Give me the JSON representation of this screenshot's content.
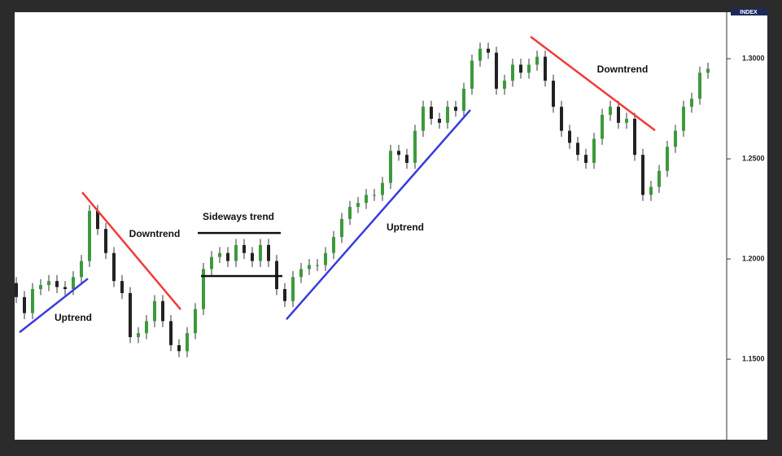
{
  "chart_data": {
    "type": "candlestick",
    "axis_badge": "INDEX",
    "up_color": "#3c9a3c",
    "down_color": "#222222",
    "wick_color": "#333333",
    "open": [
      1.188,
      1.181,
      1.173,
      1.185,
      1.187,
      1.189,
      1.186,
      1.185,
      1.191,
      1.199,
      1.224,
      1.215,
      1.203,
      1.189,
      1.183,
      1.161,
      1.163,
      1.169,
      1.179,
      1.169,
      1.157,
      1.154,
      1.163,
      1.175,
      1.195,
      1.201,
      1.203,
      1.199,
      1.207,
      1.203,
      1.199,
      1.207,
      1.199,
      1.185,
      1.179,
      1.191,
      1.195,
      1.197,
      1.197,
      1.203,
      1.211,
      1.22,
      1.226,
      1.228,
      1.232,
      1.232,
      1.238,
      1.254,
      1.252,
      1.248,
      1.264,
      1.276,
      1.27,
      1.268,
      1.276,
      1.274,
      1.285,
      1.299,
      1.305,
      1.303,
      1.285,
      1.289,
      1.297,
      1.293,
      1.297,
      1.301,
      1.289,
      1.276,
      1.264,
      1.258,
      1.252,
      1.248,
      1.26,
      1.272,
      1.276,
      1.268,
      1.27,
      1.252,
      1.232,
      1.236,
      1.244,
      1.256,
      1.264,
      1.276,
      1.28,
      1.293
    ],
    "high": [
      1.191,
      1.184,
      1.188,
      1.19,
      1.192,
      1.192,
      1.189,
      1.194,
      1.202,
      1.227,
      1.227,
      1.218,
      1.206,
      1.192,
      1.186,
      1.166,
      1.172,
      1.182,
      1.182,
      1.172,
      1.16,
      1.166,
      1.178,
      1.198,
      1.204,
      1.206,
      1.206,
      1.21,
      1.21,
      1.206,
      1.21,
      1.21,
      1.202,
      1.188,
      1.194,
      1.198,
      1.2,
      1.2,
      1.206,
      1.214,
      1.223,
      1.229,
      1.231,
      1.235,
      1.235,
      1.241,
      1.257,
      1.257,
      1.255,
      1.267,
      1.279,
      1.279,
      1.273,
      1.279,
      1.279,
      1.288,
      1.302,
      1.308,
      1.308,
      1.306,
      1.292,
      1.3,
      1.3,
      1.3,
      1.304,
      1.304,
      1.292,
      1.279,
      1.267,
      1.261,
      1.255,
      1.263,
      1.275,
      1.279,
      1.279,
      1.273,
      1.273,
      1.255,
      1.239,
      1.247,
      1.259,
      1.267,
      1.279,
      1.283,
      1.296,
      1.298
    ],
    "low": [
      1.178,
      1.17,
      1.17,
      1.182,
      1.184,
      1.183,
      1.182,
      1.182,
      1.188,
      1.196,
      1.212,
      1.2,
      1.186,
      1.18,
      1.158,
      1.158,
      1.16,
      1.166,
      1.166,
      1.154,
      1.151,
      1.151,
      1.16,
      1.172,
      1.192,
      1.198,
      1.196,
      1.196,
      1.2,
      1.196,
      1.196,
      1.196,
      1.182,
      1.176,
      1.176,
      1.188,
      1.192,
      1.194,
      1.194,
      1.2,
      1.208,
      1.217,
      1.223,
      1.225,
      1.229,
      1.229,
      1.235,
      1.249,
      1.245,
      1.245,
      1.261,
      1.267,
      1.265,
      1.265,
      1.271,
      1.271,
      1.282,
      1.296,
      1.3,
      1.282,
      1.282,
      1.286,
      1.29,
      1.29,
      1.294,
      1.286,
      1.273,
      1.261,
      1.255,
      1.249,
      1.245,
      1.245,
      1.257,
      1.269,
      1.265,
      1.265,
      1.249,
      1.229,
      1.229,
      1.233,
      1.241,
      1.253,
      1.261,
      1.273,
      1.277,
      1.29
    ],
    "close": [
      1.181,
      1.173,
      1.185,
      1.187,
      1.189,
      1.186,
      1.185,
      1.191,
      1.199,
      1.224,
      1.215,
      1.203,
      1.189,
      1.183,
      1.161,
      1.163,
      1.169,
      1.179,
      1.169,
      1.157,
      1.154,
      1.163,
      1.175,
      1.195,
      1.201,
      1.203,
      1.199,
      1.207,
      1.203,
      1.199,
      1.207,
      1.199,
      1.185,
      1.179,
      1.191,
      1.195,
      1.197,
      1.197,
      1.203,
      1.211,
      1.22,
      1.226,
      1.228,
      1.232,
      1.232,
      1.238,
      1.254,
      1.252,
      1.248,
      1.264,
      1.276,
      1.27,
      1.268,
      1.276,
      1.274,
      1.285,
      1.299,
      1.305,
      1.303,
      1.285,
      1.289,
      1.297,
      1.293,
      1.297,
      1.301,
      1.289,
      1.276,
      1.264,
      1.258,
      1.252,
      1.248,
      1.26,
      1.272,
      1.276,
      1.268,
      1.27,
      1.252,
      1.232,
      1.236,
      1.244,
      1.256,
      1.264,
      1.276,
      1.28,
      1.293,
      1.295
    ],
    "ylim": [
      1.1098,
      1.3232
    ],
    "yticks": [
      {
        "value": 1.15,
        "label": "1.1500"
      },
      {
        "value": 1.2,
        "label": "1.2000"
      },
      {
        "value": 1.25,
        "label": "1.2500"
      },
      {
        "value": 1.3,
        "label": "1.3000"
      }
    ],
    "trend_lines": [
      {
        "color": "#3a3ae0",
        "x": [
          0.4,
          8.8
        ],
        "y": [
          1.1634,
          1.1902
        ]
      },
      {
        "color": "#f03a3a",
        "x": [
          8.1,
          20.2
        ],
        "y": [
          1.2333,
          1.1748
        ]
      },
      {
        "color": "#111111",
        "x": [
          22.3,
          32.5
        ],
        "y": [
          1.213,
          1.213
        ]
      },
      {
        "color": "#111111",
        "x": [
          22.7,
          32.7
        ],
        "y": [
          1.1915,
          1.1915
        ]
      },
      {
        "color": "#3a3ae0",
        "x": [
          33.2,
          55.8
        ],
        "y": [
          1.1699,
          1.2744
        ]
      },
      {
        "color": "#f03a3a",
        "x": [
          63.2,
          78.5
        ],
        "y": [
          1.311,
          1.2642
        ]
      }
    ],
    "annotations": [
      "Uptrend",
      "Downtrend",
      "Sideways trend",
      "Uptrend",
      "Downtrend"
    ]
  }
}
